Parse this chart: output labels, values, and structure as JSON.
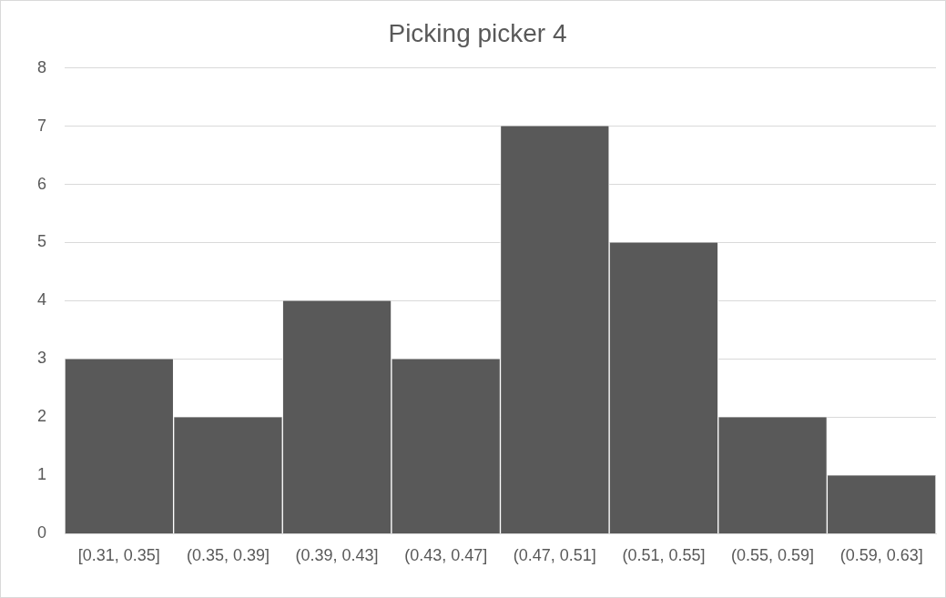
{
  "chart_data": {
    "type": "bar",
    "title": "Picking picker 4",
    "categories": [
      "[0.31, 0.35]",
      "(0.35, 0.39]",
      "(0.39, 0.43]",
      "(0.43, 0.47]",
      "(0.47, 0.51]",
      "(0.51, 0.55]",
      "(0.55, 0.59]",
      "(0.59, 0.63]"
    ],
    "values": [
      3,
      2,
      4,
      3,
      7,
      5,
      2,
      1
    ],
    "color": "#595959",
    "ylim": [
      0,
      8
    ],
    "yticks": [
      0,
      1,
      2,
      3,
      4,
      5,
      6,
      7,
      8
    ],
    "grid": "y",
    "legend": false
  }
}
